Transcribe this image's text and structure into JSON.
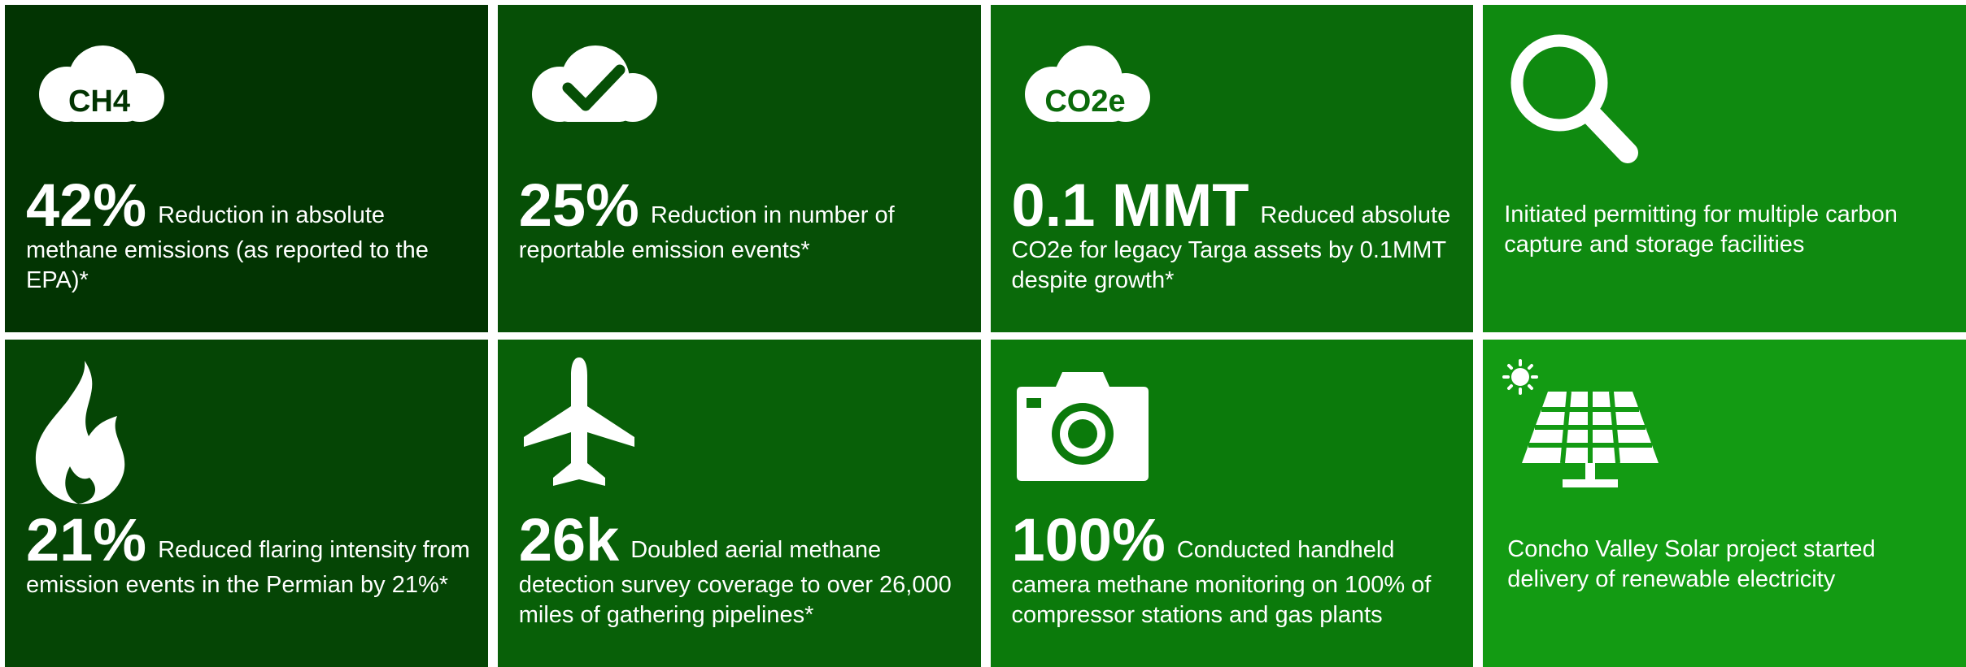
{
  "tiles": [
    {
      "icon_label": "CH4",
      "stat": "42%",
      "text": "Reduction in absolute methane emissions (as reported to the EPA)*"
    },
    {
      "stat": "25%",
      "text": "Reduction in number of reportable emission events*"
    },
    {
      "icon_label": "CO2e",
      "stat": "0.1 MMT",
      "text": "Reduced absolute CO2e for legacy Targa assets by 0.1MMT despite growth*"
    },
    {
      "text": "Initiated permitting for multiple carbon capture and storage facilities"
    },
    {
      "stat": "21%",
      "text": "Reduced flaring intensity from emission events in the Permian by 21%*"
    },
    {
      "stat": "26k",
      "text": "Doubled aerial methane detection survey coverage to over 26,000 miles of gathering pipelines*"
    },
    {
      "stat": "100%",
      "text": "Conducted handheld camera methane monitoring on 100% of compressor stations and gas plants"
    },
    {
      "text": "Concho Valley Solar project started delivery of renewable electricity"
    }
  ]
}
